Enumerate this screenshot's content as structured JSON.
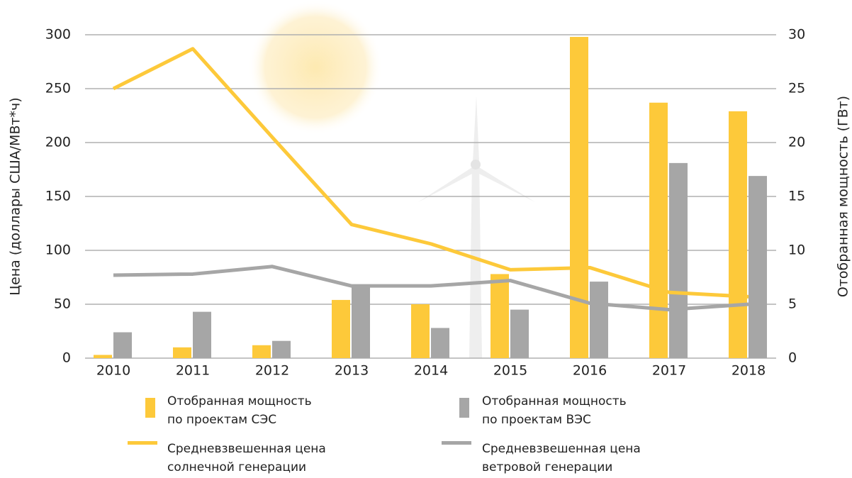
{
  "chart_data": {
    "type": "bar-line",
    "categories": [
      "2010",
      "2011",
      "2012",
      "2013",
      "2014",
      "2015",
      "2016",
      "2017",
      "2018"
    ],
    "y_label": "Цена (доллары США/МВт*ч)",
    "y2_label": "Отобранная мощность (ГВт)",
    "ylim": [
      0,
      300
    ],
    "yticks": [
      0,
      50,
      100,
      150,
      200,
      250,
      300
    ],
    "y2lim": [
      0,
      30
    ],
    "y2ticks": [
      0,
      5,
      10,
      15,
      20,
      25,
      30
    ],
    "grid": true,
    "series": [
      {
        "name": "Отобранная  мощность\nпо проектам  СЭС",
        "kind": "bar",
        "axis": "y2",
        "color": "#fdc93a",
        "values": [
          0.3,
          1.0,
          1.2,
          5.4,
          5.0,
          7.8,
          29.8,
          23.7,
          22.9
        ]
      },
      {
        "name": "Отобранная  мощность\nпо проектам  ВЭС",
        "kind": "bar",
        "axis": "y2",
        "color": "#a6a6a6",
        "values": [
          2.4,
          4.3,
          1.6,
          6.7,
          2.8,
          4.5,
          7.1,
          18.1,
          16.9
        ]
      },
      {
        "name": "Средневзвешенная цена\nсолнечной генерации",
        "kind": "line",
        "color": "#fdc93a",
        "values": [
          250,
          287,
          205,
          124,
          106,
          82,
          84,
          61,
          57
        ]
      },
      {
        "name": "Средневзвешенная цена\nветровой генерации",
        "kind": "line",
        "color": "#a6a6a6",
        "values": [
          77,
          78,
          85,
          67,
          67,
          72,
          51,
          45,
          50
        ]
      }
    ]
  }
}
